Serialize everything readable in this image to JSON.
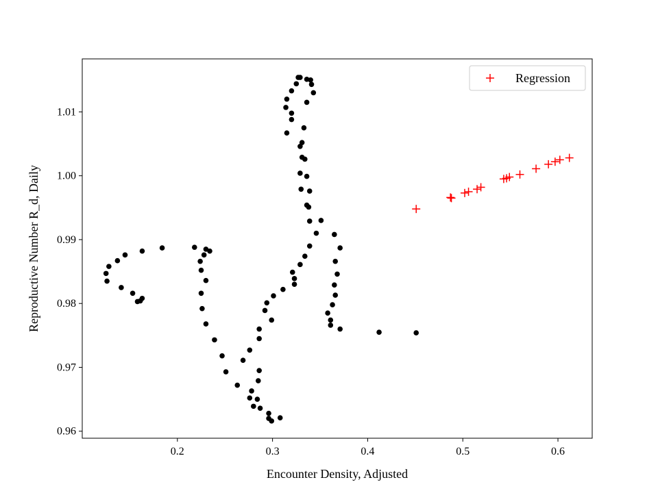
{
  "chart_data": {
    "type": "scatter",
    "title": "",
    "xlabel": "Encounter Density, Adjusted",
    "ylabel": "Reproductive Number R_d, Daily",
    "xlim": [
      0.1,
      0.636
    ],
    "ylim": [
      0.9589,
      1.0183
    ],
    "xticks": [
      0.2,
      0.3,
      0.4,
      0.5,
      0.6
    ],
    "yticks": [
      0.96,
      0.97,
      0.98,
      0.99,
      1.0,
      1.01
    ],
    "xtick_labels": [
      "0.2",
      "0.3",
      "0.4",
      "0.5",
      "0.6"
    ],
    "ytick_labels": [
      "0.96",
      "0.97",
      "0.98",
      "0.99",
      "1.00",
      "1.01"
    ],
    "grid": false,
    "legend_position": "top-right",
    "colors": {
      "observed": "#000000",
      "regression": "#ff0000"
    },
    "series": [
      {
        "marker": "dot",
        "points": [
          [
            0.451,
            0.9754
          ],
          [
            0.412,
            0.9755
          ],
          [
            0.371,
            0.976
          ],
          [
            0.361,
            0.9766
          ],
          [
            0.361,
            0.9774
          ],
          [
            0.358,
            0.9785
          ],
          [
            0.363,
            0.9798
          ],
          [
            0.366,
            0.9813
          ],
          [
            0.365,
            0.9829
          ],
          [
            0.368,
            0.9846
          ],
          [
            0.366,
            0.9866
          ],
          [
            0.371,
            0.9887
          ],
          [
            0.365,
            0.9908
          ],
          [
            0.351,
            0.993
          ],
          [
            0.339,
            0.9929
          ],
          [
            0.338,
            0.9951
          ],
          [
            0.336,
            0.9954
          ],
          [
            0.339,
            0.9976
          ],
          [
            0.336,
            0.9999
          ],
          [
            0.329,
            1.0004
          ],
          [
            0.33,
            0.9979
          ],
          [
            0.334,
            1.0026
          ],
          [
            0.331,
            1.0029
          ],
          [
            0.331,
            1.0052
          ],
          [
            0.329,
            1.0046
          ],
          [
            0.333,
            1.0075
          ],
          [
            0.315,
            1.0067
          ],
          [
            0.32,
            1.0088
          ],
          [
            0.32,
            1.0098
          ],
          [
            0.314,
            1.0107
          ],
          [
            0.315,
            1.012
          ],
          [
            0.32,
            1.0133
          ],
          [
            0.325,
            1.0144
          ],
          [
            0.327,
            1.0154
          ],
          [
            0.329,
            1.0154
          ],
          [
            0.336,
            1.0151
          ],
          [
            0.34,
            1.015
          ],
          [
            0.341,
            1.0143
          ],
          [
            0.343,
            1.013
          ],
          [
            0.336,
            1.0115
          ],
          [
            0.346,
            0.991
          ],
          [
            0.339,
            0.989
          ],
          [
            0.334,
            0.9874
          ],
          [
            0.329,
            0.9861
          ],
          [
            0.321,
            0.9849
          ],
          [
            0.323,
            0.9839
          ],
          [
            0.323,
            0.983
          ],
          [
            0.311,
            0.9822
          ],
          [
            0.301,
            0.9812
          ],
          [
            0.294,
            0.9801
          ],
          [
            0.292,
            0.9789
          ],
          [
            0.299,
            0.9774
          ],
          [
            0.286,
            0.976
          ],
          [
            0.286,
            0.9745
          ],
          [
            0.276,
            0.9727
          ],
          [
            0.269,
            0.9711
          ],
          [
            0.286,
            0.9695
          ],
          [
            0.285,
            0.9679
          ],
          [
            0.263,
            0.9672
          ],
          [
            0.278,
            0.9663
          ],
          [
            0.276,
            0.9652
          ],
          [
            0.284,
            0.965
          ],
          [
            0.28,
            0.9639
          ],
          [
            0.287,
            0.9636
          ],
          [
            0.296,
            0.9628
          ],
          [
            0.296,
            0.962
          ],
          [
            0.299,
            0.9616
          ],
          [
            0.308,
            0.9621
          ],
          [
            0.251,
            0.9693
          ],
          [
            0.247,
            0.9718
          ],
          [
            0.239,
            0.9743
          ],
          [
            0.23,
            0.9768
          ],
          [
            0.226,
            0.9792
          ],
          [
            0.225,
            0.9816
          ],
          [
            0.23,
            0.9836
          ],
          [
            0.225,
            0.9852
          ],
          [
            0.224,
            0.9866
          ],
          [
            0.228,
            0.9876
          ],
          [
            0.23,
            0.9885
          ],
          [
            0.234,
            0.9882
          ],
          [
            0.218,
            0.9888
          ],
          [
            0.184,
            0.9887
          ],
          [
            0.163,
            0.9882
          ],
          [
            0.163,
            0.9808
          ],
          [
            0.161,
            0.9804
          ],
          [
            0.158,
            0.9803
          ],
          [
            0.153,
            0.9816
          ],
          [
            0.141,
            0.9825
          ],
          [
            0.126,
            0.9835
          ],
          [
            0.125,
            0.9847
          ],
          [
            0.128,
            0.9858
          ],
          [
            0.137,
            0.9867
          ],
          [
            0.145,
            0.9876
          ]
        ]
      },
      {
        "name": "Regression",
        "marker": "plus",
        "points": [
          [
            0.451,
            0.9948
          ],
          [
            0.487,
            0.9966
          ],
          [
            0.488,
            0.9965
          ],
          [
            0.502,
            0.9973
          ],
          [
            0.506,
            0.9975
          ],
          [
            0.515,
            0.9979
          ],
          [
            0.519,
            0.9982
          ],
          [
            0.543,
            0.9995
          ],
          [
            0.546,
            0.9996
          ],
          [
            0.549,
            0.9998
          ],
          [
            0.56,
            1.0002
          ],
          [
            0.577,
            1.0011
          ],
          [
            0.59,
            1.0018
          ],
          [
            0.597,
            1.0022
          ],
          [
            0.602,
            1.0025
          ],
          [
            0.612,
            1.0028
          ]
        ]
      }
    ]
  }
}
